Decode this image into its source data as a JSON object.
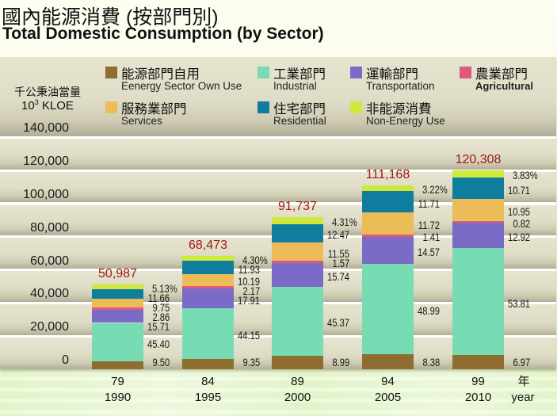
{
  "chart_data": {
    "type": "bar",
    "stacked": true,
    "title": "國內能源消費 (按部門別)",
    "subtitle": "Total Domestic Consumption (by Sector)",
    "ylabel_zh": "千公秉油當量",
    "ylabel_en_base": "10",
    "ylabel_en_sup": "3",
    "ylabel_en_unit": " KLOE",
    "xlabel_zh": "年",
    "xlabel_en": "year",
    "ylim": [
      0,
      140000
    ],
    "yticks": [
      0,
      20000,
      40000,
      60000,
      80000,
      100000,
      120000,
      140000
    ],
    "yticks_labels": [
      "0",
      "20,000",
      "40,000",
      "60,000",
      "80,000",
      "100,000",
      "120,000",
      "140,000"
    ],
    "grid": true,
    "legend": "top",
    "categories": [
      "1990",
      "1995",
      "2000",
      "2005",
      "2010"
    ],
    "categories_roc": [
      "79",
      "84",
      "89",
      "94",
      "99"
    ],
    "totals": [
      50987,
      68473,
      91737,
      111168,
      120308
    ],
    "total_labels": [
      "50,987",
      "68,473",
      "91,737",
      "111,168",
      "120,308"
    ],
    "value_unit": "percent share of total",
    "series": [
      {
        "key": "energy-sector-own-use",
        "name_zh": "能源部門自用",
        "name_en": "Eenergy Sector Own Use",
        "color": "#8f6c30",
        "values": [
          9.5,
          9.35,
          8.99,
          8.38,
          6.97
        ],
        "labels": [
          "9.50",
          "9.35",
          "8.99",
          "8.38",
          "6.97"
        ]
      },
      {
        "key": "industrial",
        "name_zh": "工業部門",
        "name_en": "Industrial",
        "color": "#77dcb4",
        "values": [
          45.4,
          44.15,
          45.37,
          48.99,
          53.81
        ],
        "labels": [
          "45.40",
          "44.15",
          "45.37",
          "48.99",
          "53.81"
        ]
      },
      {
        "key": "transportation",
        "name_zh": "運輸部門",
        "name_en": "Transportation",
        "color": "#7a6cc6",
        "values": [
          15.71,
          17.91,
          15.74,
          14.57,
          12.92
        ],
        "labels": [
          "15.71",
          "17.91",
          "15.74",
          "14.57",
          "12.92"
        ]
      },
      {
        "key": "agricultural",
        "name_zh": "農業部門",
        "name_en": "Agricultural",
        "color": "#dc5a7e",
        "values": [
          2.86,
          2.17,
          1.57,
          1.41,
          0.82
        ],
        "labels": [
          "2.86",
          "2.17",
          "1.57",
          "1.41",
          "0.82"
        ]
      },
      {
        "key": "services",
        "name_zh": "服務業部門",
        "name_en": "Services",
        "color": "#ecbc58",
        "values": [
          9.75,
          10.19,
          11.55,
          11.72,
          10.95
        ],
        "labels": [
          "9.75",
          "10.19",
          "11.55",
          "11.72",
          "10.95"
        ]
      },
      {
        "key": "residential",
        "name_zh": "住宅部門",
        "name_en": "Residential",
        "color": "#0f7d9e",
        "values": [
          11.66,
          11.93,
          12.47,
          11.71,
          10.71
        ],
        "labels": [
          "11.66",
          "11.93",
          "12.47",
          "11.71",
          "10.71"
        ]
      },
      {
        "key": "non-energy-use",
        "name_zh": "非能源消費",
        "name_en": "Non-Energy Use",
        "color": "#cfe83c",
        "values": [
          5.13,
          4.3,
          4.31,
          3.22,
          3.83
        ],
        "labels": [
          "5.13%",
          "4.30%",
          "4.31%",
          "3.22%",
          "3.83%"
        ]
      }
    ]
  }
}
